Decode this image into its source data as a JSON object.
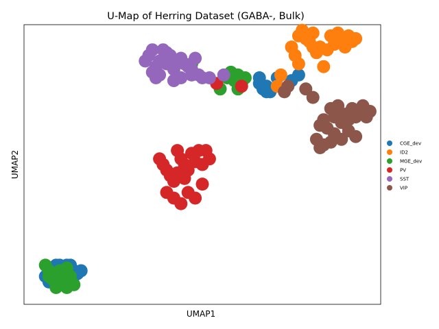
{
  "chart_data": {
    "type": "scatter",
    "title": "U-Map of Herring Dataset (GABA-, Bulk)",
    "xlabel": "UMAP1",
    "ylabel": "UMAP2",
    "xlim": [
      0,
      100
    ],
    "ylim": [
      0,
      100
    ],
    "grid": false,
    "ticks": false,
    "legend_position": "right",
    "series": [
      {
        "name": "CGE_dev",
        "color": "#1f77b4",
        "points": [
          [
            7,
            10
          ],
          [
            8,
            11
          ],
          [
            9,
            12
          ],
          [
            10,
            13
          ],
          [
            9,
            14
          ],
          [
            11,
            13
          ],
          [
            12,
            12
          ],
          [
            13,
            11
          ],
          [
            14,
            12
          ],
          [
            15,
            11
          ],
          [
            12,
            10
          ],
          [
            10,
            9
          ],
          [
            8,
            8
          ],
          [
            11,
            7
          ],
          [
            13,
            7
          ],
          [
            6,
            10
          ],
          [
            8,
            12
          ],
          [
            14,
            10
          ],
          [
            13,
            14
          ],
          [
            10,
            14
          ],
          [
            12,
            14
          ],
          [
            16,
            12
          ],
          [
            7,
            8
          ],
          [
            9,
            7
          ],
          [
            66,
            79
          ],
          [
            67,
            77
          ],
          [
            68,
            76
          ],
          [
            69,
            76
          ],
          [
            71,
            81
          ],
          [
            73,
            77
          ],
          [
            75,
            80
          ],
          [
            77,
            82
          ],
          [
            66,
            81
          ],
          [
            68,
            78
          ]
        ]
      },
      {
        "name": "ID2",
        "color": "#ff7f0e",
        "points": [
          [
            71,
            78
          ],
          [
            72,
            82
          ],
          [
            75,
            92
          ],
          [
            76,
            89
          ],
          [
            77,
            96
          ],
          [
            78,
            98
          ],
          [
            79,
            95
          ],
          [
            80,
            94
          ],
          [
            81,
            97
          ],
          [
            82,
            90
          ],
          [
            83,
            92
          ],
          [
            84,
            85
          ],
          [
            85,
            91
          ],
          [
            86,
            96
          ],
          [
            87,
            93
          ],
          [
            88,
            97
          ],
          [
            89,
            95
          ],
          [
            90,
            92
          ],
          [
            91,
            96
          ],
          [
            92,
            94
          ],
          [
            93,
            95
          ],
          [
            81,
            92
          ],
          [
            77,
            86
          ]
        ]
      },
      {
        "name": "MGE_dev",
        "color": "#2ca02c",
        "points": [
          [
            6,
            14
          ],
          [
            7,
            12
          ],
          [
            8,
            11
          ],
          [
            9,
            10
          ],
          [
            10,
            9
          ],
          [
            11,
            11
          ],
          [
            12,
            13
          ],
          [
            13,
            10
          ],
          [
            11,
            8
          ],
          [
            9,
            6
          ],
          [
            12,
            6
          ],
          [
            14,
            7
          ],
          [
            8,
            9
          ],
          [
            10,
            12
          ],
          [
            7,
            10
          ],
          [
            12,
            11
          ],
          [
            47,
            86
          ],
          [
            57,
            81
          ],
          [
            58,
            83
          ],
          [
            59,
            80
          ],
          [
            60,
            82
          ],
          [
            61,
            79
          ],
          [
            62,
            81
          ],
          [
            55,
            77
          ],
          [
            60,
            77
          ]
        ]
      },
      {
        "name": "PV",
        "color": "#d62728",
        "points": [
          [
            38,
            52
          ],
          [
            39,
            50
          ],
          [
            40,
            48
          ],
          [
            41,
            46
          ],
          [
            42,
            44
          ],
          [
            43,
            55
          ],
          [
            44,
            52
          ],
          [
            45,
            50
          ],
          [
            46,
            48
          ],
          [
            47,
            54
          ],
          [
            48,
            51
          ],
          [
            49,
            55
          ],
          [
            50,
            50
          ],
          [
            51,
            55
          ],
          [
            52,
            52
          ],
          [
            40,
            40
          ],
          [
            42,
            38
          ],
          [
            44,
            36
          ],
          [
            46,
            40
          ],
          [
            48,
            38
          ],
          [
            50,
            43
          ],
          [
            54,
            79
          ],
          [
            61,
            78
          ],
          [
            45,
            45
          ],
          [
            43,
            47
          ]
        ]
      },
      {
        "name": "SST",
        "color": "#9467bd",
        "points": [
          [
            34,
            87
          ],
          [
            35,
            89
          ],
          [
            36,
            91
          ],
          [
            37,
            85
          ],
          [
            38,
            87
          ],
          [
            39,
            91
          ],
          [
            40,
            86
          ],
          [
            41,
            89
          ],
          [
            42,
            84
          ],
          [
            43,
            87
          ],
          [
            44,
            88
          ],
          [
            45,
            86
          ],
          [
            46,
            85
          ],
          [
            47,
            84
          ],
          [
            48,
            88
          ],
          [
            49,
            82
          ],
          [
            50,
            81
          ],
          [
            37,
            81
          ],
          [
            38,
            82
          ],
          [
            36,
            83
          ],
          [
            42,
            80
          ],
          [
            44,
            81
          ],
          [
            47,
            82
          ],
          [
            52,
            81
          ],
          [
            56,
            82
          ],
          [
            40,
            90
          ]
        ]
      },
      {
        "name": "VIP",
        "color": "#8c564b",
        "points": [
          [
            73,
            76
          ],
          [
            74,
            78
          ],
          [
            79,
            77
          ],
          [
            81,
            74
          ],
          [
            83,
            64
          ],
          [
            84,
            66
          ],
          [
            85,
            63
          ],
          [
            86,
            70
          ],
          [
            87,
            67
          ],
          [
            88,
            71
          ],
          [
            89,
            65
          ],
          [
            90,
            68
          ],
          [
            91,
            66
          ],
          [
            92,
            70
          ],
          [
            93,
            67
          ],
          [
            94,
            68
          ],
          [
            95,
            71
          ],
          [
            96,
            67
          ],
          [
            97,
            69
          ],
          [
            84,
            57
          ],
          [
            86,
            58
          ],
          [
            82,
            59
          ],
          [
            83,
            56
          ],
          [
            89,
            59
          ],
          [
            87,
            61
          ],
          [
            91,
            62
          ],
          [
            93,
            60
          ]
        ]
      }
    ]
  }
}
